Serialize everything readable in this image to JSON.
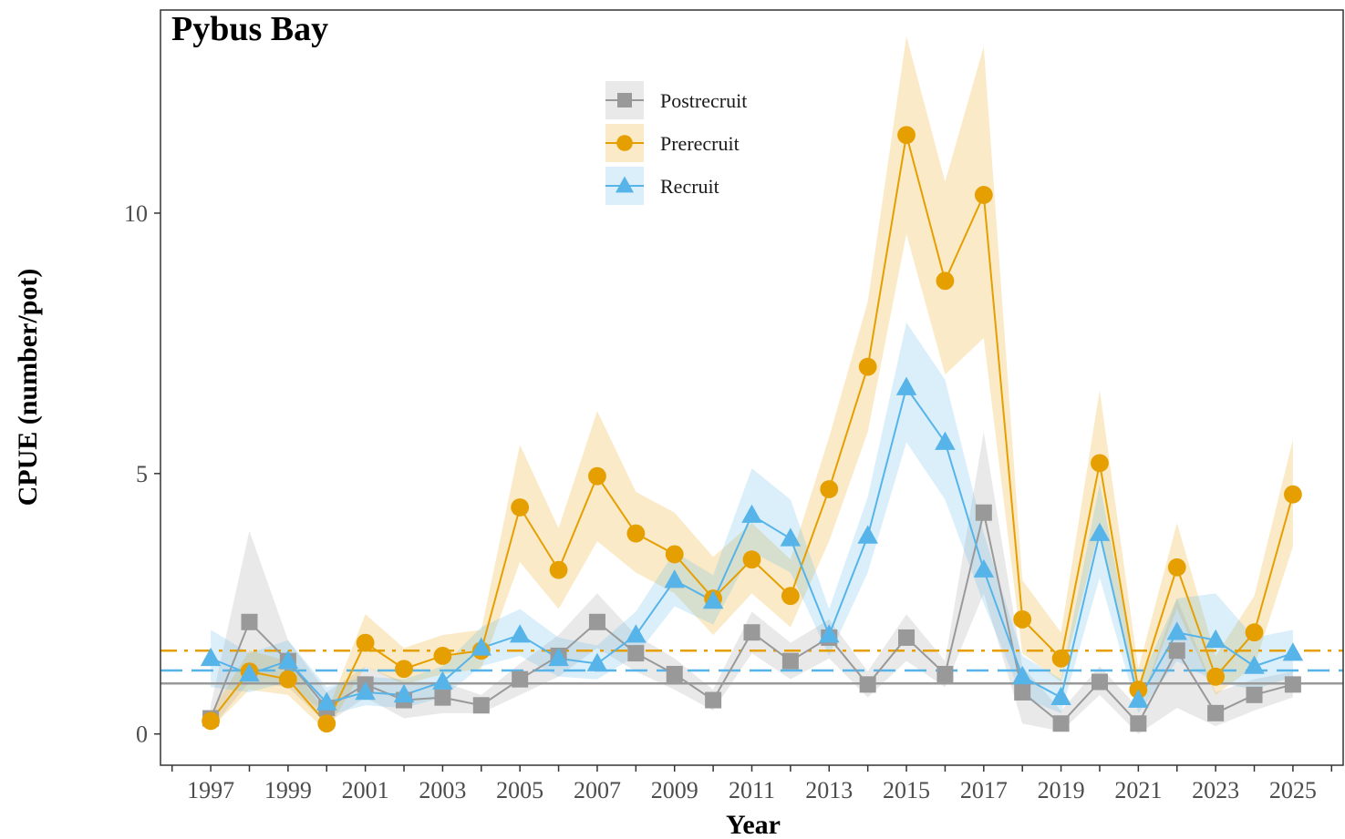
{
  "chart_data": {
    "type": "line",
    "title": "Pybus Bay",
    "xlabel": "Year",
    "ylabel": "CPUE (number/pot)",
    "xlim": [
      1995.7,
      2026.3
    ],
    "ylim": [
      -0.6,
      13.9
    ],
    "xticks": [
      1997,
      1999,
      2001,
      2003,
      2005,
      2007,
      2009,
      2011,
      2013,
      2015,
      2017,
      2019,
      2021,
      2023,
      2025
    ],
    "yticks": [
      0,
      5,
      10
    ],
    "grid": false,
    "legend_position": "top-center",
    "x": [
      1997,
      1998,
      1999,
      2000,
      2001,
      2002,
      2003,
      2004,
      2005,
      2006,
      2007,
      2008,
      2009,
      2010,
      2011,
      2012,
      2013,
      2014,
      2015,
      2016,
      2017,
      2018,
      2019,
      2020,
      2021,
      2022,
      2023,
      2024,
      2025
    ],
    "series": [
      {
        "name": "Postrecruit",
        "color": "#999999",
        "marker": "square",
        "values": [
          0.3,
          2.15,
          1.4,
          0.5,
          0.95,
          0.65,
          0.7,
          0.55,
          1.05,
          1.5,
          2.15,
          1.55,
          1.15,
          0.65,
          1.95,
          1.4,
          1.85,
          0.95,
          1.85,
          1.15,
          4.25,
          0.8,
          0.2,
          1.0,
          0.2,
          1.6,
          0.4,
          0.75,
          0.95
        ],
        "lower": [
          0.1,
          1.0,
          0.9,
          0.2,
          0.7,
          0.3,
          0.4,
          0.4,
          0.75,
          1.1,
          1.65,
          1.2,
          0.85,
          0.45,
          1.55,
          1.05,
          1.45,
          0.7,
          1.4,
          0.9,
          2.7,
          0.2,
          0.05,
          0.75,
          0.0,
          0.5,
          0.15,
          0.45,
          0.7
        ],
        "upper": [
          0.55,
          3.9,
          1.8,
          0.8,
          1.3,
          1.0,
          1.0,
          0.75,
          1.35,
          1.9,
          2.7,
          1.9,
          1.45,
          0.85,
          2.35,
          1.75,
          2.2,
          1.2,
          2.3,
          1.4,
          5.8,
          1.3,
          0.45,
          1.3,
          0.5,
          2.6,
          0.8,
          1.05,
          1.2
        ],
        "mean_line": 0.97,
        "mean_line_style": "solid"
      },
      {
        "name": "Prerecruit",
        "color": "#E69F00",
        "marker": "circle",
        "values": [
          0.25,
          1.2,
          1.05,
          0.2,
          1.75,
          1.25,
          1.5,
          1.6,
          4.35,
          3.15,
          4.95,
          3.85,
          3.45,
          2.6,
          3.35,
          2.65,
          4.7,
          7.05,
          11.5,
          8.7,
          10.35,
          2.2,
          1.45,
          5.2,
          0.85,
          3.2,
          1.1,
          1.95,
          4.6
        ],
        "lower": [
          0.1,
          0.85,
          0.75,
          0.05,
          1.3,
          0.95,
          1.15,
          1.25,
          3.3,
          2.4,
          3.7,
          3.1,
          2.7,
          1.9,
          2.7,
          2.05,
          3.7,
          5.8,
          9.6,
          6.9,
          7.6,
          1.55,
          1.0,
          3.95,
          0.5,
          2.4,
          0.75,
          1.3,
          3.6
        ],
        "upper": [
          0.4,
          1.6,
          1.4,
          0.4,
          2.3,
          1.65,
          1.9,
          2.0,
          5.55,
          3.95,
          6.2,
          4.65,
          4.25,
          3.4,
          4.05,
          3.35,
          5.7,
          8.3,
          13.4,
          10.6,
          13.2,
          2.95,
          1.95,
          6.6,
          1.25,
          4.05,
          1.5,
          2.65,
          5.65
        ],
        "mean_line": 1.6,
        "mean_line_style": "dot-dash"
      },
      {
        "name": "Recruit",
        "color": "#56B4E9",
        "marker": "triangle",
        "values": [
          1.45,
          1.15,
          1.4,
          0.6,
          0.8,
          0.75,
          1.0,
          1.65,
          1.9,
          1.45,
          1.35,
          1.9,
          2.95,
          2.55,
          4.2,
          3.75,
          1.9,
          3.8,
          6.65,
          5.6,
          3.15,
          1.1,
          0.7,
          3.85,
          0.65,
          1.95,
          1.8,
          1.3,
          1.55
        ],
        "lower": [
          0.9,
          0.8,
          1.0,
          0.35,
          0.55,
          0.5,
          0.7,
          1.3,
          1.5,
          1.1,
          1.05,
          1.5,
          2.45,
          2.1,
          3.5,
          3.1,
          1.5,
          3.1,
          5.6,
          4.5,
          2.5,
          0.7,
          0.4,
          3.0,
          0.4,
          1.4,
          1.0,
          0.85,
          1.1
        ],
        "upper": [
          2.0,
          1.55,
          1.8,
          0.9,
          1.1,
          1.05,
          1.3,
          2.05,
          2.4,
          1.85,
          1.7,
          2.35,
          3.5,
          3.05,
          5.1,
          4.5,
          2.4,
          4.55,
          7.9,
          6.8,
          3.85,
          1.5,
          1.05,
          4.8,
          0.95,
          2.6,
          2.7,
          1.85,
          2.0
        ],
        "mean_line": 1.22,
        "mean_line_style": "dashed"
      }
    ]
  }
}
